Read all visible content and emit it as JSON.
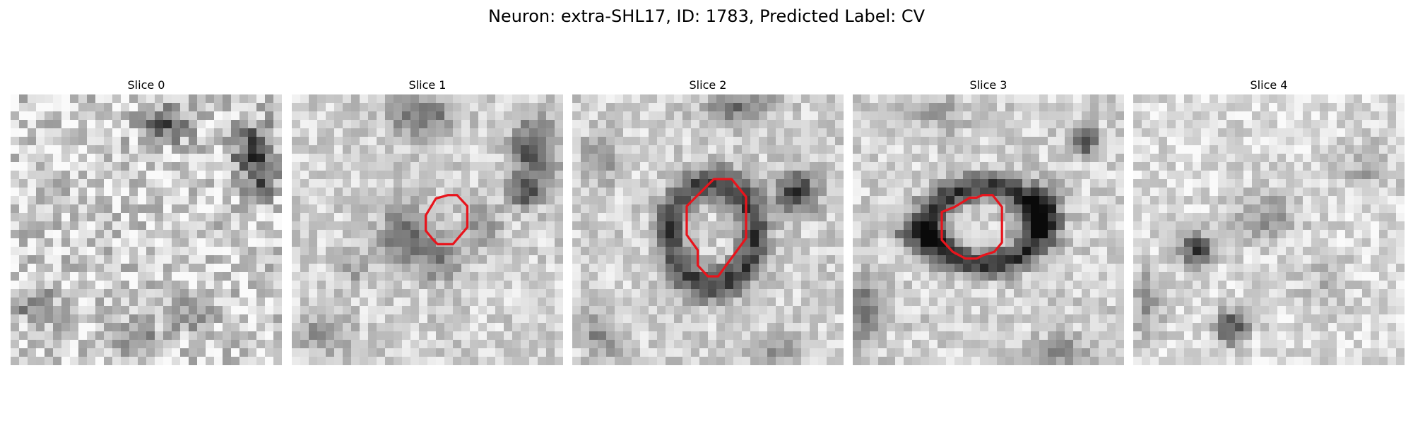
{
  "figure": {
    "title": "Neuron: extra-SHL17, ID: 1783, Predicted Label: CV"
  },
  "colors": {
    "background": "#ffffff",
    "contour": "#e8141c",
    "colormap": "grayscale"
  },
  "panels": [
    {
      "title": "Slice 0",
      "has_contour": false
    },
    {
      "title": "Slice 1",
      "has_contour": true
    },
    {
      "title": "Slice 2",
      "has_contour": true
    },
    {
      "title": "Slice 3",
      "has_contour": true
    },
    {
      "title": "Slice 4",
      "has_contour": false
    }
  ]
}
